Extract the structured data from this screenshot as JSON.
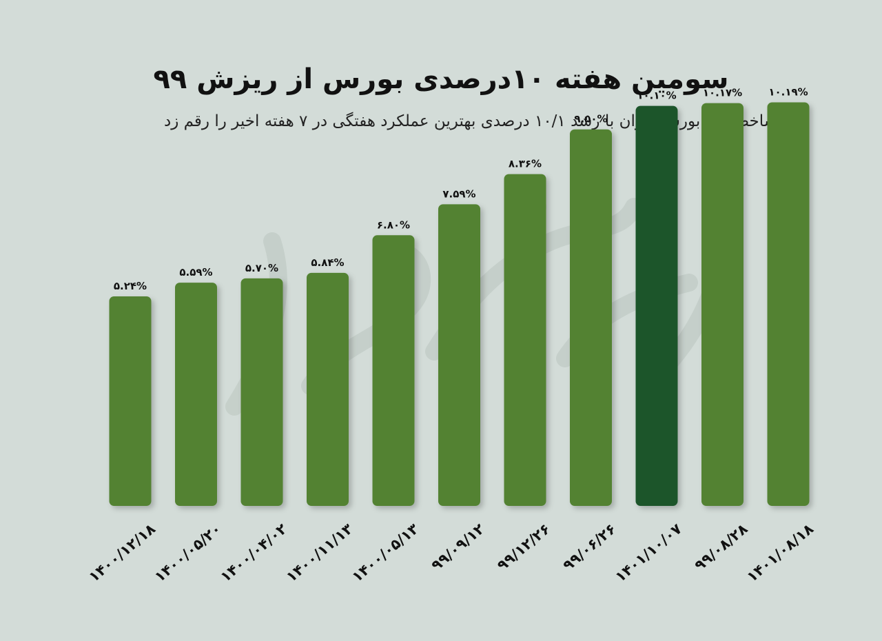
{
  "title": "سومین هفته ۱۰درصدی بورس از ریزش ۹۹",
  "subtitle": "شاخص کل بورس تهران با رشد ۱۰/۱ درصدی بهترین عملکرد هفتگی در ۷ هفته اخیر را رقم زد",
  "colors": {
    "bar": "#528233",
    "highlight": "#1a542b",
    "background": "#d3dcd8"
  },
  "chart_data": {
    "type": "bar",
    "categories": [
      "۱۴۰۰/۱۲/۱۸",
      "۱۴۰۰/۰۵/۲۰",
      "۱۴۰۰/۰۴/۰۲",
      "۱۴۰۰/۱۱/۱۳",
      "۱۴۰۰/۰۵/۱۳",
      "۹۹/۰۹/۱۲",
      "۹۹/۱۲/۲۶",
      "۹۹/۰۶/۲۶",
      "۱۴۰۱/۱۰/۰۷",
      "۹۹/۰۸/۲۸",
      "۱۴۰۱/۰۸/۱۸"
    ],
    "values": [
      5.24,
      5.59,
      5.7,
      5.84,
      6.8,
      7.59,
      8.36,
      9.5,
      10.1,
      10.17,
      10.19
    ],
    "value_labels": [
      "۵.۲۴%",
      "۵.۵۹%",
      "۵.۷۰%",
      "۵.۸۴%",
      "۶.۸۰%",
      "۷.۵۹%",
      "۸.۳۶%",
      "۹.۵۰%",
      "۱۰.۱۰%",
      "۱۰.۱۷%",
      "۱۰.۱۹%"
    ],
    "highlight_index": 8,
    "ylim": [
      0,
      11.5
    ],
    "grid": false
  }
}
